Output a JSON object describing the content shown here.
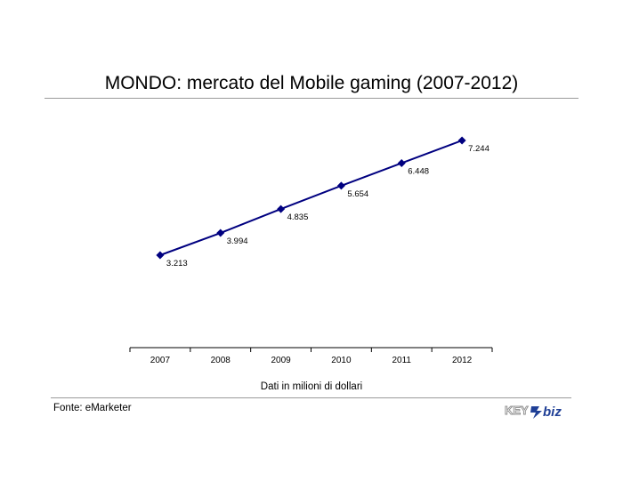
{
  "header": {
    "title": "MONDO: mercato del Mobile gaming (2007-2012)"
  },
  "footer": {
    "note": "Dati in milioni di dollari",
    "source": "Fonte: eMarketer",
    "logo_text": "KEY4biz"
  },
  "colors": {
    "series": "#000080",
    "rule": "#9a9a9a",
    "logo_blue": "#1f3f96",
    "logo_gray": "#8c8c8c"
  },
  "chart_data": {
    "type": "line",
    "title": "MONDO: mercato del Mobile gaming (2007-2012)",
    "xlabel": "",
    "ylabel": "",
    "categories": [
      "2007",
      "2008",
      "2009",
      "2010",
      "2011",
      "2012"
    ],
    "series": [
      {
        "values": [
          3213,
          3994,
          4835,
          5654,
          6448,
          7244
        ],
        "labels": [
          "3.213",
          "3.994",
          "4.835",
          "5.654",
          "6.448",
          "7.244"
        ]
      }
    ],
    "ylim": [
      0,
      8000
    ],
    "grid": false,
    "legend": "none"
  }
}
